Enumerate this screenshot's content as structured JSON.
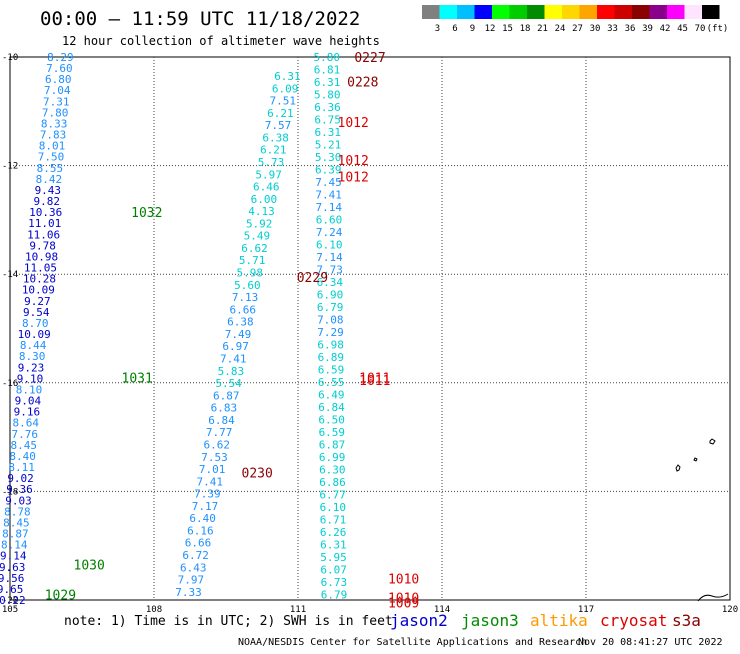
{
  "title": "00:00 – 11:59 UTC 11/18/2022",
  "subtitle": "12 hour collection of altimeter wave heights",
  "color_legend": {
    "colors": [
      "#808080",
      "#00ffff",
      "#00bfff",
      "#0000ff",
      "#00ff00",
      "#00cd00",
      "#008b00",
      "#ffff00",
      "#ffd700",
      "#ffa500",
      "#ff0000",
      "#cd0000",
      "#8b0000",
      "#8b008b",
      "#ff00ff",
      "#ffe4ff",
      "#000000"
    ],
    "labels": [
      "3",
      "6",
      "9",
      "12",
      "15",
      "18",
      "21",
      "24",
      "27",
      "30",
      "33",
      "36",
      "39",
      "42",
      "45",
      "70",
      "(ft)"
    ]
  },
  "axes": {
    "x_ticks": [
      "105",
      "108",
      "111",
      "114",
      "117",
      "120"
    ],
    "y_ticks": [
      "-10",
      "-12",
      "-14",
      "-16",
      "-18",
      "-20"
    ],
    "x_range": [
      105,
      120
    ],
    "y_range": [
      -20,
      -10
    ]
  },
  "tracks": [
    {
      "name": "track-blue",
      "start": [
        106.05,
        -10.0
      ],
      "end": [
        104.98,
        -20.0
      ],
      "values": [
        {
          "v": "8.29",
          "c": "#1e90ff"
        },
        {
          "v": "7.60",
          "c": "#1e90ff"
        },
        {
          "v": "6.80",
          "c": "#1e90ff"
        },
        {
          "v": "7.04",
          "c": "#1e90ff"
        },
        {
          "v": "7.31",
          "c": "#1e90ff"
        },
        {
          "v": "7.80",
          "c": "#1e90ff"
        },
        {
          "v": "8.33",
          "c": "#1e90ff"
        },
        {
          "v": "7.83",
          "c": "#1e90ff"
        },
        {
          "v": "8.01",
          "c": "#1e90ff"
        },
        {
          "v": "7.50",
          "c": "#1e90ff"
        },
        {
          "v": "8.55",
          "c": "#1e90ff"
        },
        {
          "v": "8.42",
          "c": "#1e90ff"
        },
        {
          "v": "9.43",
          "c": "#0000cd"
        },
        {
          "v": "9.82",
          "c": "#0000cd"
        },
        {
          "v": "10.36",
          "c": "#0000cd"
        },
        {
          "v": "11.01",
          "c": "#0000cd"
        },
        {
          "v": "11.06",
          "c": "#0000cd"
        },
        {
          "v": "9.78",
          "c": "#0000cd"
        },
        {
          "v": "10.98",
          "c": "#0000cd"
        },
        {
          "v": "11.05",
          "c": "#0000cd"
        },
        {
          "v": "10.28",
          "c": "#0000cd"
        },
        {
          "v": "10.09",
          "c": "#0000cd"
        },
        {
          "v": "9.27",
          "c": "#0000cd"
        },
        {
          "v": "9.54",
          "c": "#0000cd"
        },
        {
          "v": "8.70",
          "c": "#1e90ff"
        },
        {
          "v": "10.09",
          "c": "#0000cd"
        },
        {
          "v": "8.44",
          "c": "#1e90ff"
        },
        {
          "v": "8.30",
          "c": "#1e90ff"
        },
        {
          "v": "9.23",
          "c": "#0000cd"
        },
        {
          "v": "9.10",
          "c": "#0000cd"
        },
        {
          "v": "8.10",
          "c": "#1e90ff"
        },
        {
          "v": "9.04",
          "c": "#0000cd"
        },
        {
          "v": "9.16",
          "c": "#0000cd"
        },
        {
          "v": "8.64",
          "c": "#1e90ff"
        },
        {
          "v": "7.76",
          "c": "#1e90ff"
        },
        {
          "v": "8.45",
          "c": "#1e90ff"
        },
        {
          "v": "8.40",
          "c": "#1e90ff"
        },
        {
          "v": "8.11",
          "c": "#1e90ff"
        },
        {
          "v": "9.02",
          "c": "#0000cd"
        },
        {
          "v": "9.36",
          "c": "#0000cd"
        },
        {
          "v": "9.03",
          "c": "#0000cd"
        },
        {
          "v": "8.78",
          "c": "#1e90ff"
        },
        {
          "v": "8.45",
          "c": "#1e90ff"
        },
        {
          "v": "8.87",
          "c": "#1e90ff"
        },
        {
          "v": "8.14",
          "c": "#1e90ff"
        },
        {
          "v": "9.14",
          "c": "#0000cd"
        },
        {
          "v": "9.63",
          "c": "#0000cd"
        },
        {
          "v": "9.56",
          "c": "#0000cd"
        },
        {
          "v": "9.65",
          "c": "#0000cd"
        },
        {
          "v": "10.22",
          "c": "#0000cd"
        }
      ]
    },
    {
      "name": "track-mid",
      "start": [
        110.78,
        -10.35
      ],
      "end": [
        108.72,
        -19.85
      ],
      "values": [
        {
          "v": "6.31",
          "c": "#00ced1"
        },
        {
          "v": "6.09",
          "c": "#00ced1"
        },
        {
          "v": "7.51",
          "c": "#1e90ff"
        },
        {
          "v": "6.21",
          "c": "#00ced1"
        },
        {
          "v": "7.57",
          "c": "#1e90ff"
        },
        {
          "v": "6.38",
          "c": "#00ced1"
        },
        {
          "v": "6.21",
          "c": "#00ced1"
        },
        {
          "v": "5.73",
          "c": "#00ced1"
        },
        {
          "v": "5.97",
          "c": "#00ced1"
        },
        {
          "v": "6.46",
          "c": "#00ced1"
        },
        {
          "v": "6.00",
          "c": "#00ced1"
        },
        {
          "v": "4.13",
          "c": "#00ced1"
        },
        {
          "v": "5.92",
          "c": "#00ced1"
        },
        {
          "v": "5.49",
          "c": "#00ced1"
        },
        {
          "v": "6.62",
          "c": "#00ced1"
        },
        {
          "v": "5.71",
          "c": "#00ced1"
        },
        {
          "v": "5.98",
          "c": "#00ced1"
        },
        {
          "v": "5.60",
          "c": "#00ced1"
        },
        {
          "v": "7.13",
          "c": "#1e90ff"
        },
        {
          "v": "6.66",
          "c": "#1e90ff"
        },
        {
          "v": "6.38",
          "c": "#1e90ff"
        },
        {
          "v": "7.49",
          "c": "#1e90ff"
        },
        {
          "v": "6.97",
          "c": "#1e90ff"
        },
        {
          "v": "7.41",
          "c": "#1e90ff"
        },
        {
          "v": "5.83",
          "c": "#00ced1"
        },
        {
          "v": "5.54",
          "c": "#00ced1"
        },
        {
          "v": "6.87",
          "c": "#1e90ff"
        },
        {
          "v": "6.83",
          "c": "#1e90ff"
        },
        {
          "v": "6.84",
          "c": "#1e90ff"
        },
        {
          "v": "7.77",
          "c": "#1e90ff"
        },
        {
          "v": "6.62",
          "c": "#1e90ff"
        },
        {
          "v": "7.53",
          "c": "#1e90ff"
        },
        {
          "v": "7.01",
          "c": "#1e90ff"
        },
        {
          "v": "7.41",
          "c": "#1e90ff"
        },
        {
          "v": "7.39",
          "c": "#1e90ff"
        },
        {
          "v": "7.17",
          "c": "#1e90ff"
        },
        {
          "v": "6.40",
          "c": "#1e90ff"
        },
        {
          "v": "6.16",
          "c": "#1e90ff"
        },
        {
          "v": "6.66",
          "c": "#1e90ff"
        },
        {
          "v": "6.72",
          "c": "#1e90ff"
        },
        {
          "v": "6.43",
          "c": "#1e90ff"
        },
        {
          "v": "7.97",
          "c": "#1e90ff"
        },
        {
          "v": "7.33",
          "c": "#1e90ff"
        }
      ]
    },
    {
      "name": "track-right",
      "start": [
        111.6,
        -10.0
      ],
      "end": [
        111.75,
        -19.9
      ],
      "values": [
        {
          "v": "5.80",
          "c": "#00ced1"
        },
        {
          "v": "6.81",
          "c": "#00ced1"
        },
        {
          "v": "6.31",
          "c": "#00ced1"
        },
        {
          "v": "5.80",
          "c": "#00ced1"
        },
        {
          "v": "6.36",
          "c": "#00ced1"
        },
        {
          "v": "6.75",
          "c": "#00ced1"
        },
        {
          "v": "6.31",
          "c": "#00ced1"
        },
        {
          "v": "5.21",
          "c": "#00ced1"
        },
        {
          "v": "5.30",
          "c": "#00ced1"
        },
        {
          "v": "6.39",
          "c": "#00ced1"
        },
        {
          "v": "7.45",
          "c": "#1e90ff"
        },
        {
          "v": "7.41",
          "c": "#1e90ff"
        },
        {
          "v": "7.14",
          "c": "#1e90ff"
        },
        {
          "v": "6.60",
          "c": "#00ced1"
        },
        {
          "v": "7.24",
          "c": "#1e90ff"
        },
        {
          "v": "6.10",
          "c": "#00ced1"
        },
        {
          "v": "7.14",
          "c": "#1e90ff"
        },
        {
          "v": "7.73",
          "c": "#1e90ff"
        },
        {
          "v": "6.34",
          "c": "#00ced1"
        },
        {
          "v": "6.90",
          "c": "#00ced1"
        },
        {
          "v": "6.79",
          "c": "#00ced1"
        },
        {
          "v": "7.08",
          "c": "#1e90ff"
        },
        {
          "v": "7.29",
          "c": "#1e90ff"
        },
        {
          "v": "6.98",
          "c": "#00ced1"
        },
        {
          "v": "6.89",
          "c": "#00ced1"
        },
        {
          "v": "6.59",
          "c": "#00ced1"
        },
        {
          "v": "6.55",
          "c": "#00ced1"
        },
        {
          "v": "6.49",
          "c": "#00ced1"
        },
        {
          "v": "6.84",
          "c": "#00ced1"
        },
        {
          "v": "6.50",
          "c": "#00ced1"
        },
        {
          "v": "6.59",
          "c": "#00ced1"
        },
        {
          "v": "6.87",
          "c": "#00ced1"
        },
        {
          "v": "6.99",
          "c": "#00ced1"
        },
        {
          "v": "6.30",
          "c": "#00ced1"
        },
        {
          "v": "6.86",
          "c": "#00ced1"
        },
        {
          "v": "6.77",
          "c": "#00ced1"
        },
        {
          "v": "6.10",
          "c": "#00ced1"
        },
        {
          "v": "6.71",
          "c": "#00ced1"
        },
        {
          "v": "6.26",
          "c": "#00ced1"
        },
        {
          "v": "6.31",
          "c": "#00ced1"
        },
        {
          "v": "5.95",
          "c": "#00ced1"
        },
        {
          "v": "6.07",
          "c": "#00ced1"
        },
        {
          "v": "6.73",
          "c": "#00ced1"
        },
        {
          "v": "6.79",
          "c": "#00ced1"
        }
      ]
    }
  ],
  "revs": [
    {
      "t": "0227",
      "c": "#8b0000",
      "lon": 112.5,
      "lat": -10.0
    },
    {
      "t": "0228",
      "c": "#8b0000",
      "lon": 112.35,
      "lat": -10.45
    },
    {
      "t": "1012",
      "c": "#dd0000",
      "lon": 112.15,
      "lat": -11.2
    },
    {
      "t": "1012",
      "c": "#dd0000",
      "lon": 112.15,
      "lat": -11.9
    },
    {
      "t": "1012",
      "c": "#dd0000",
      "lon": 112.15,
      "lat": -12.2
    },
    {
      "t": "1032",
      "c": "#008000",
      "lon": 107.85,
      "lat": -12.85
    },
    {
      "t": "0229",
      "c": "#8b0000",
      "lon": 111.3,
      "lat": -14.05
    },
    {
      "t": "1011",
      "c": "#dd0000",
      "lon": 112.6,
      "lat": -15.9
    },
    {
      "t": "1011",
      "c": "#dd0000",
      "lon": 112.6,
      "lat": -15.95
    },
    {
      "t": "1031",
      "c": "#008000",
      "lon": 107.65,
      "lat": -15.9
    },
    {
      "t": "0230",
      "c": "#8b0000",
      "lon": 110.15,
      "lat": -17.65
    },
    {
      "t": "1030",
      "c": "#008000",
      "lon": 106.65,
      "lat": -19.35
    },
    {
      "t": "1010",
      "c": "#dd0000",
      "lon": 113.2,
      "lat": -19.6
    },
    {
      "t": "1010",
      "c": "#dd0000",
      "lon": 113.2,
      "lat": -19.95
    },
    {
      "t": "1009",
      "c": "#dd0000",
      "lon": 113.2,
      "lat": -20.05
    },
    {
      "t": "1029",
      "c": "#008000",
      "lon": 106.05,
      "lat": -19.9
    }
  ],
  "note": "note: 1) Time is in UTC; 2) SWH is in feet",
  "satellites": [
    {
      "name": "jason2",
      "color": "#0000cd"
    },
    {
      "name": "jason3",
      "color": "#008b00"
    },
    {
      "name": "altika",
      "color": "#ff9900"
    },
    {
      "name": "cryosat",
      "color": "#dd0000"
    },
    {
      "name": "s3a",
      "color": "#8b0000"
    }
  ],
  "credit": "NOAA/NESDIS Center for Satellite Applications and Research",
  "timestamp": "Nov 20 08:41:27 UTC 2022"
}
